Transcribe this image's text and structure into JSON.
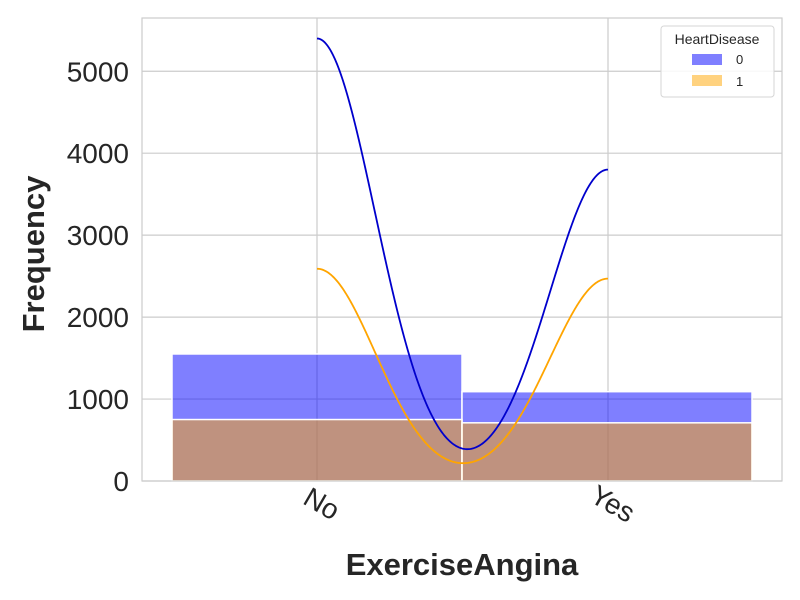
{
  "chart_data": {
    "type": "bar",
    "stacked": "layer",
    "xlabel": "ExerciseAngina",
    "ylabel": "Frequency",
    "categories": [
      "No",
      "Yes"
    ],
    "ylim": [
      0,
      5650
    ],
    "yticks": [
      0,
      1000,
      2000,
      3000,
      4000,
      5000
    ],
    "grid": true,
    "legend": {
      "title": "HeartDisease",
      "position": "top-right",
      "entries": [
        "0",
        "1"
      ]
    },
    "series": [
      {
        "name": "0",
        "color": "#0000ff",
        "fill_alpha": 0.5,
        "values": [
          1550,
          1090
        ]
      },
      {
        "name": "1",
        "color": "#ffa500",
        "fill_alpha": 0.5,
        "values": [
          750,
          710
        ]
      }
    ],
    "kde": [
      {
        "series": "0",
        "color": "#0000cc",
        "peaks": [
          5400,
          3800
        ]
      },
      {
        "series": "1",
        "color": "#ffa500",
        "peaks": [
          2590,
          2470
        ]
      }
    ]
  }
}
